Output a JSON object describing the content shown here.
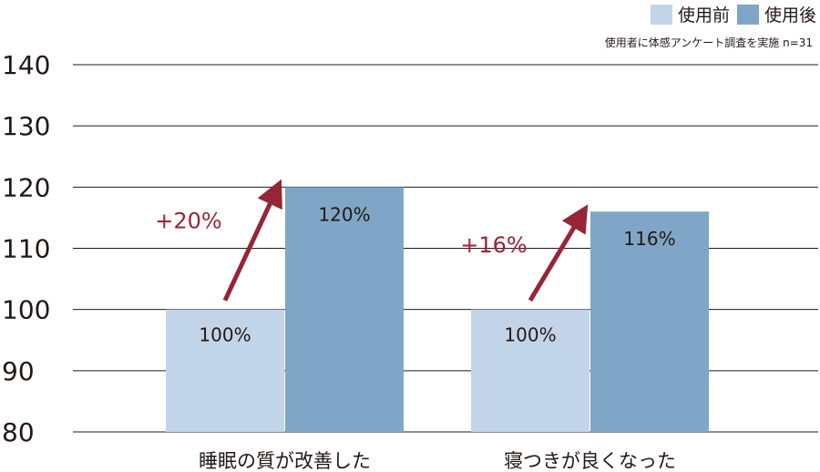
{
  "chart_data": {
    "type": "bar",
    "categories": [
      "睡眠の質が改善した",
      "寝つきが良くなった"
    ],
    "series": [
      {
        "name": "使用前",
        "values": [
          100,
          100
        ],
        "labels": [
          "100%",
          "100%"
        ],
        "color": "#c2d5e8"
      },
      {
        "name": "使用後",
        "values": [
          120,
          116
        ],
        "labels": [
          "120%",
          "116%"
        ],
        "color": "#7fa6c6"
      }
    ],
    "ylim": [
      80,
      140
    ],
    "yticks": [
      "80",
      "90",
      "100",
      "110",
      "120",
      "130",
      "140"
    ],
    "annotations": [
      "+20%",
      "+16%"
    ],
    "note": "使用者に体感アンケート調査を実施 n=31",
    "legend_position": "top-right",
    "grid": true,
    "accent_color": "#962537"
  }
}
